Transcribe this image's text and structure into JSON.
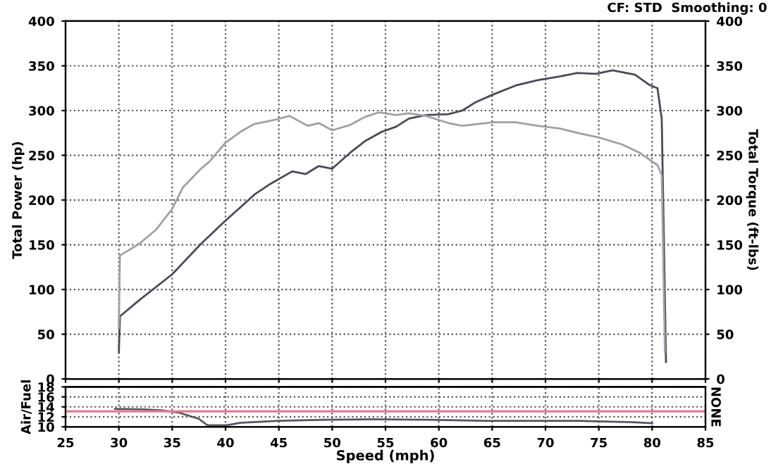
{
  "chart_data": [
    {
      "type": "line",
      "ylabel": "Total Power (hp)",
      "y2label": "Total Torque (ft-lbs)",
      "annotations": [
        "CF: STD  Smoothing: 0"
      ],
      "xlim": [
        25,
        85
      ],
      "xticks": [
        25,
        30,
        35,
        40,
        45,
        50,
        55,
        60,
        65,
        70,
        75,
        80,
        85
      ],
      "ylim": [
        0,
        400
      ],
      "yticks": [
        0,
        50,
        100,
        150,
        200,
        250,
        300,
        350,
        400
      ],
      "y2lim": [
        0,
        400
      ],
      "y2ticks": [
        0,
        50,
        100,
        150,
        200,
        250,
        300,
        350,
        400
      ],
      "grid": true,
      "line_style": "solid",
      "tick_labels": "y",
      "series": [
        {
          "color": "#4a4a58",
          "x": [
            30,
            30.1,
            31.9,
            35,
            37.7,
            40,
            41.5,
            42.7,
            44.2,
            46.25,
            47.5,
            48.75,
            50,
            51.7,
            53.1,
            54.6,
            56,
            57.2,
            58.8,
            60.9,
            62.2,
            63.4,
            65.1,
            67.2,
            69.25,
            71.3,
            73,
            74.7,
            76.3,
            78.4,
            79.7,
            80.5,
            80.9,
            81.3
          ],
          "values": [
            30,
            70,
            88,
            117,
            151,
            177,
            193,
            206,
            218,
            232,
            229,
            238,
            235,
            253,
            266,
            276,
            282,
            291,
            295,
            296,
            300,
            309,
            318,
            328,
            334,
            338,
            342,
            341,
            345,
            340,
            329,
            325,
            291,
            19
          ]
        },
        {
          "color": "#a0a0a6",
          "x": [
            30,
            30.1,
            31.9,
            33.5,
            35,
            36,
            37.7,
            38.5,
            40,
            41.5,
            42.7,
            44.4,
            46,
            47.7,
            48.75,
            50,
            51.7,
            53.1,
            54.4,
            56,
            57.2,
            58.8,
            60.9,
            62.2,
            65.1,
            67.2,
            69.25,
            71.3,
            73.4,
            75,
            77.2,
            78.8,
            80.5,
            80.9,
            81.2
          ],
          "values": [
            57,
            138,
            151,
            167,
            190,
            214,
            235,
            243,
            264,
            277,
            285,
            289,
            294,
            283,
            286,
            278,
            284,
            293,
            298,
            295,
            297,
            294,
            286,
            283,
            287,
            287,
            283,
            280,
            274,
            270,
            262,
            253,
            239,
            228,
            30
          ]
        }
      ]
    },
    {
      "type": "line",
      "xlabel": "Speed (mph)",
      "ylabel": "Air/Fuel",
      "y2label": "NONE",
      "xlim": [
        25,
        85
      ],
      "xticks": [
        25,
        30,
        35,
        40,
        45,
        50,
        55,
        60,
        65,
        70,
        75,
        80,
        85
      ],
      "ylim": [
        10,
        18
      ],
      "yticks": [
        10,
        12,
        14,
        16,
        18
      ],
      "grid": true,
      "line_style": "solid",
      "tick_labels": "xy",
      "ref_lines": [
        {
          "axis": "y",
          "value": 13.1,
          "color": "#e87a90"
        }
      ],
      "series": [
        {
          "color": "#555560",
          "x": [
            29.65,
            32.3,
            34,
            35.7,
            37.5,
            38.3,
            40.1,
            41.4,
            44.9,
            49.2,
            53.6,
            59.2,
            64.4,
            73.1,
            78.3,
            80
          ],
          "values": [
            13.6,
            13.5,
            13.3,
            12.8,
            11.6,
            10.3,
            10.3,
            10.8,
            11.2,
            11.4,
            11.5,
            11.4,
            11.2,
            11.2,
            10.9,
            10.7
          ]
        }
      ]
    }
  ]
}
